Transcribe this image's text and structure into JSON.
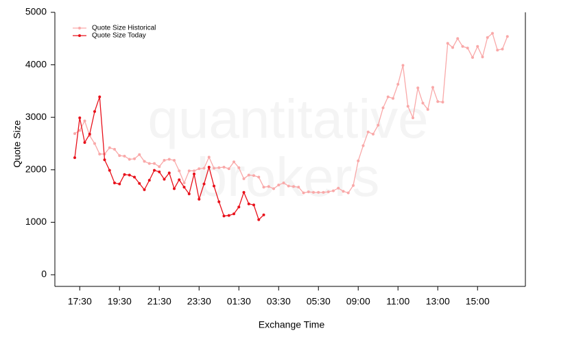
{
  "chart_data": {
    "type": "line",
    "watermark": [
      "quantitative",
      "brokers"
    ],
    "x_label": "Exchange Time",
    "y_label": "Quote Size",
    "categories": [
      null,
      "17:30",
      null,
      null,
      null,
      null,
      null,
      null,
      null,
      "19:30",
      null,
      null,
      null,
      null,
      null,
      null,
      null,
      "21:30",
      null,
      null,
      null,
      null,
      null,
      null,
      null,
      "23:30",
      null,
      null,
      null,
      null,
      null,
      null,
      null,
      "01:30",
      null,
      null,
      null,
      null,
      null,
      null,
      null,
      "03:30",
      null,
      null,
      null,
      null,
      null,
      null,
      null,
      "05:30",
      null,
      null,
      null,
      null,
      null,
      null,
      null,
      "09:00",
      null,
      null,
      null,
      null,
      null,
      null,
      null,
      "11:00",
      null,
      null,
      null,
      null,
      null,
      null,
      null,
      "13:00",
      null,
      null,
      null,
      null,
      null,
      null,
      null,
      "15:00",
      null,
      null,
      null,
      null,
      null,
      null
    ],
    "series": [
      {
        "name": "Quote Size Historical",
        "color": "#f9a8a8",
        "values": [
          2690,
          2750,
          2930,
          2650,
          2500,
          2300,
          2300,
          2420,
          2390,
          2270,
          2260,
          2200,
          2210,
          2290,
          2160,
          2120,
          2120,
          2060,
          2180,
          2200,
          2180,
          1980,
          1750,
          1980,
          1980,
          2020,
          2030,
          2240,
          2030,
          2040,
          2050,
          2020,
          2150,
          2040,
          1830,
          1900,
          1890,
          1860,
          1670,
          1680,
          1640,
          1710,
          1750,
          1690,
          1680,
          1670,
          1560,
          1580,
          1570,
          1570,
          1570,
          1580,
          1600,
          1650,
          1590,
          1560,
          1700,
          2170,
          2460,
          2720,
          2680,
          2850,
          3180,
          3390,
          3360,
          3630,
          3990,
          3210,
          2990,
          3560,
          3270,
          3150,
          3570,
          3300,
          3290,
          4410,
          4330,
          4500,
          4350,
          4320,
          4140,
          4350,
          4150,
          4520,
          4600,
          4280,
          4300,
          4540
        ]
      },
      {
        "name": "Quote Size Today",
        "color": "#e8101a",
        "values": [
          2230,
          2990,
          2520,
          2680,
          3110,
          3390,
          2190,
          1990,
          1750,
          1730,
          1910,
          1900,
          1860,
          1740,
          1620,
          1800,
          1990,
          1960,
          1820,
          1940,
          1640,
          1810,
          1670,
          1540,
          1920,
          1440,
          1730,
          2050,
          1690,
          1390,
          1120,
          1130,
          1160,
          1290,
          1570,
          1350,
          1330,
          1050,
          1140,
          null,
          null,
          null,
          null,
          null,
          null,
          null,
          null,
          null,
          null,
          null,
          null,
          null,
          null,
          null,
          null,
          null,
          null,
          null,
          null,
          null,
          null,
          null,
          null,
          null,
          null,
          null,
          null,
          null,
          null,
          null,
          null,
          null,
          null,
          null,
          null,
          null,
          null,
          null,
          null,
          null,
          null,
          null,
          null,
          null,
          null,
          null,
          null,
          null
        ]
      }
    ],
    "ylim": [
      0,
      5000
    ],
    "yticks": [
      0,
      1000,
      2000,
      3000,
      4000,
      5000
    ],
    "legend": "top-left"
  }
}
